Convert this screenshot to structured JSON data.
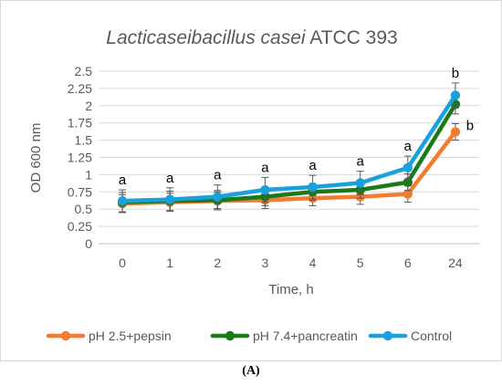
{
  "chart_data": {
    "type": "line",
    "title_italic": "Lacticaseibacillus casei",
    "title_rest": " ATCC 393",
    "xlabel": "Time, h",
    "ylabel": "OD 600 nm",
    "categories": [
      "0",
      "1",
      "2",
      "3",
      "4",
      "5",
      "6",
      "24"
    ],
    "ylim": [
      0,
      2.5
    ],
    "yticks": [
      "0",
      "0.25",
      "0.5",
      "0.75",
      "1",
      "1.25",
      "1.5",
      "1.75",
      "2",
      "2.25",
      "2.5"
    ],
    "grid": true,
    "legend_position": "bottom",
    "series": [
      {
        "name": "pH 2.5+pepsin",
        "color": "#F47B30",
        "values": [
          0.58,
          0.6,
          0.62,
          0.63,
          0.66,
          0.68,
          0.72,
          1.62
        ],
        "errors": [
          0.13,
          0.13,
          0.13,
          0.12,
          0.11,
          0.11,
          0.12,
          0.12
        ]
      },
      {
        "name": "pH 7.4+pancreatin",
        "color": "#1A7A1A",
        "values": [
          0.6,
          0.62,
          0.63,
          0.68,
          0.75,
          0.78,
          0.89,
          2.02
        ],
        "errors": [
          0.14,
          0.14,
          0.14,
          0.13,
          0.12,
          0.12,
          0.12,
          0.14
        ]
      },
      {
        "name": "Control",
        "color": "#1AA1DB",
        "values": [
          0.62,
          0.64,
          0.68,
          0.78,
          0.82,
          0.88,
          1.1,
          2.15
        ],
        "errors": [
          0.16,
          0.17,
          0.17,
          0.18,
          0.17,
          0.17,
          0.17,
          0.18
        ]
      }
    ],
    "annotations": [
      "a",
      "a",
      "a",
      "a",
      "a",
      "a",
      "a",
      "b"
    ],
    "annotation_24_lower": "b"
  },
  "panel_label": "(A)"
}
